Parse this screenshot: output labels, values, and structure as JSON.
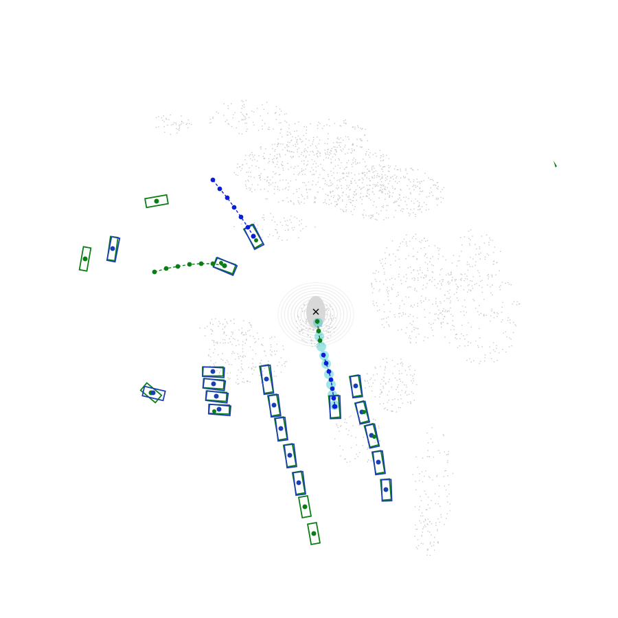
{
  "view": {
    "type": "lidar-bev-detection-visualization",
    "ego_marker": "x-mark-icon"
  },
  "colors": {
    "background": "#ffffff",
    "lidar_points": "#c8c8c8",
    "ground_truth_box": "#0a7d14",
    "predicted_box": "#1a3fb3",
    "ground_truth_trajectory": "#0a7d14",
    "predicted_trajectory": "#0a1ed8",
    "ego_planned_path": "#2ec7c9",
    "ego_marker": "#000000"
  },
  "legend": {
    "ground_truth": "",
    "prediction": ""
  }
}
